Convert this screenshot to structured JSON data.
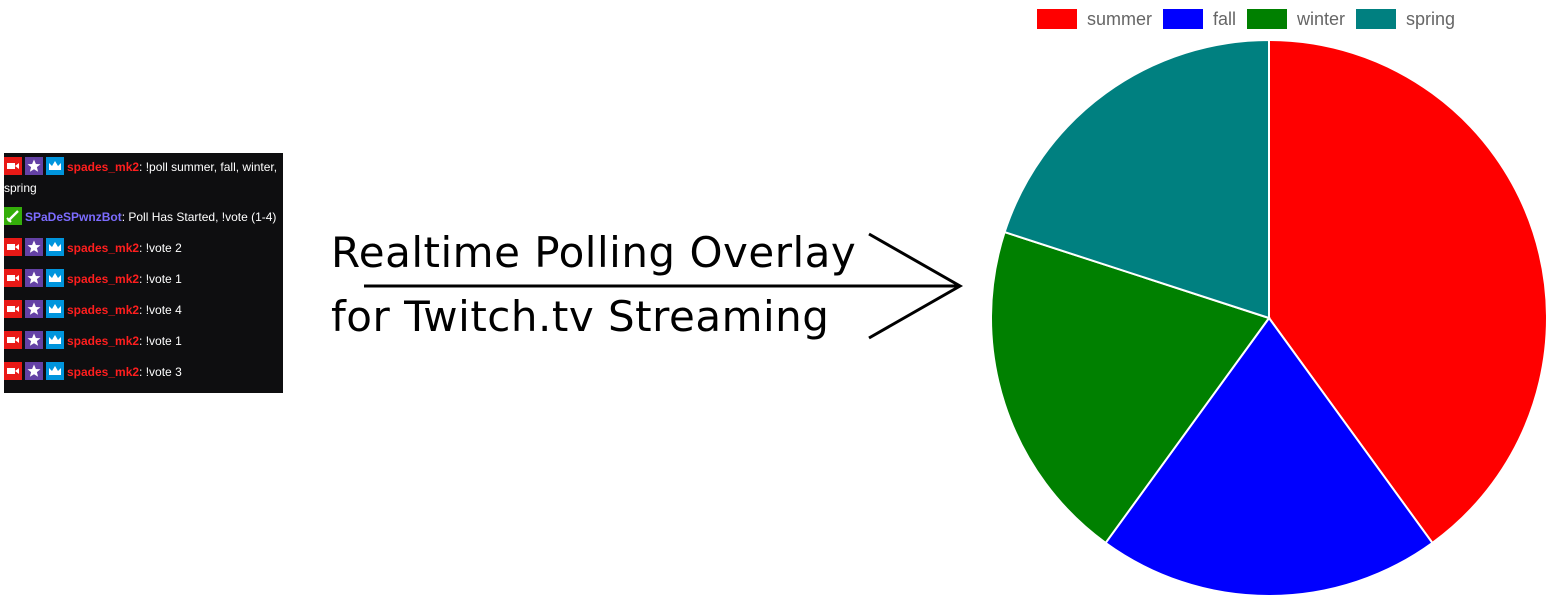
{
  "chat": {
    "messages": [
      {
        "user": "spades_mk2",
        "user_color": "#ff1e1e",
        "badges": [
          "broadcaster-icon",
          "star-icon",
          "crown-icon"
        ],
        "sep": ": ",
        "text": "!poll summer, fall, winter, spring"
      },
      {
        "user": "SPaDeSPwnzBot",
        "user_color": "#7c6cff",
        "badges": [
          "sword-icon"
        ],
        "sep": ": ",
        "text": "Poll Has Started, !vote (1-4)"
      },
      {
        "user": "spades_mk2",
        "user_color": "#ff1e1e",
        "badges": [
          "broadcaster-icon",
          "star-icon",
          "crown-icon"
        ],
        "sep": ": ",
        "text": "!vote 2"
      },
      {
        "user": "spades_mk2",
        "user_color": "#ff1e1e",
        "badges": [
          "broadcaster-icon",
          "star-icon",
          "crown-icon"
        ],
        "sep": ": ",
        "text": "!vote 1"
      },
      {
        "user": "spades_mk2",
        "user_color": "#ff1e1e",
        "badges": [
          "broadcaster-icon",
          "star-icon",
          "crown-icon"
        ],
        "sep": ": ",
        "text": "!vote 4"
      },
      {
        "user": "spades_mk2",
        "user_color": "#ff1e1e",
        "badges": [
          "broadcaster-icon",
          "star-icon",
          "crown-icon"
        ],
        "sep": ": ",
        "text": "!vote 1"
      },
      {
        "user": "spades_mk2",
        "user_color": "#ff1e1e",
        "badges": [
          "broadcaster-icon",
          "star-icon",
          "crown-icon"
        ],
        "sep": ": ",
        "text": "!vote 3"
      }
    ]
  },
  "overlay_title": {
    "line1": "Realtime Polling Overlay",
    "line2": "for Twitch.tv Streaming"
  },
  "chart_data": {
    "type": "pie",
    "categories": [
      "summer",
      "fall",
      "winter",
      "spring"
    ],
    "values": [
      2,
      1,
      1,
      1
    ],
    "colors": [
      "#ff0000",
      "#0000ff",
      "#008000",
      "#008080"
    ],
    "legend_position": "top",
    "title": ""
  }
}
